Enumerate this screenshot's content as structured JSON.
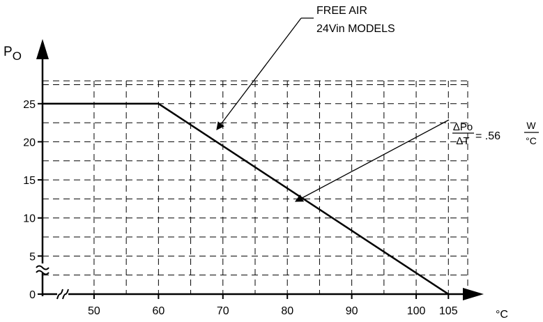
{
  "chart_data": {
    "type": "line",
    "title": "",
    "xlabel": "°C",
    "ylabel": {
      "main": "P",
      "sub": "O"
    },
    "xlim": [
      42,
      108
    ],
    "ylim": [
      0,
      28
    ],
    "x_ticks": [
      50,
      60,
      70,
      80,
      90,
      100,
      105
    ],
    "x_tick_labels": [
      "50",
      "60",
      "70",
      "80",
      "90",
      "100",
      "105"
    ],
    "y_ticks": [
      0,
      5,
      10,
      15,
      20,
      25
    ],
    "y_tick_labels": [
      "0",
      "5",
      "10",
      "15",
      "20",
      "25"
    ],
    "grid": true,
    "grid_style": "dashed",
    "axis_breaks": [
      "x",
      "y"
    ],
    "series": [
      {
        "x": [
          42,
          60,
          105
        ],
        "y": [
          25,
          25,
          0
        ]
      }
    ],
    "annotations": {
      "free_air": [
        "FREE AIR",
        "24Vin MODELS"
      ],
      "slope": {
        "numerator": "ΔPo",
        "denominator": "ΔT",
        "equals": "= .56",
        "unit_numerator": "W",
        "unit_denominator": "°C"
      }
    }
  }
}
